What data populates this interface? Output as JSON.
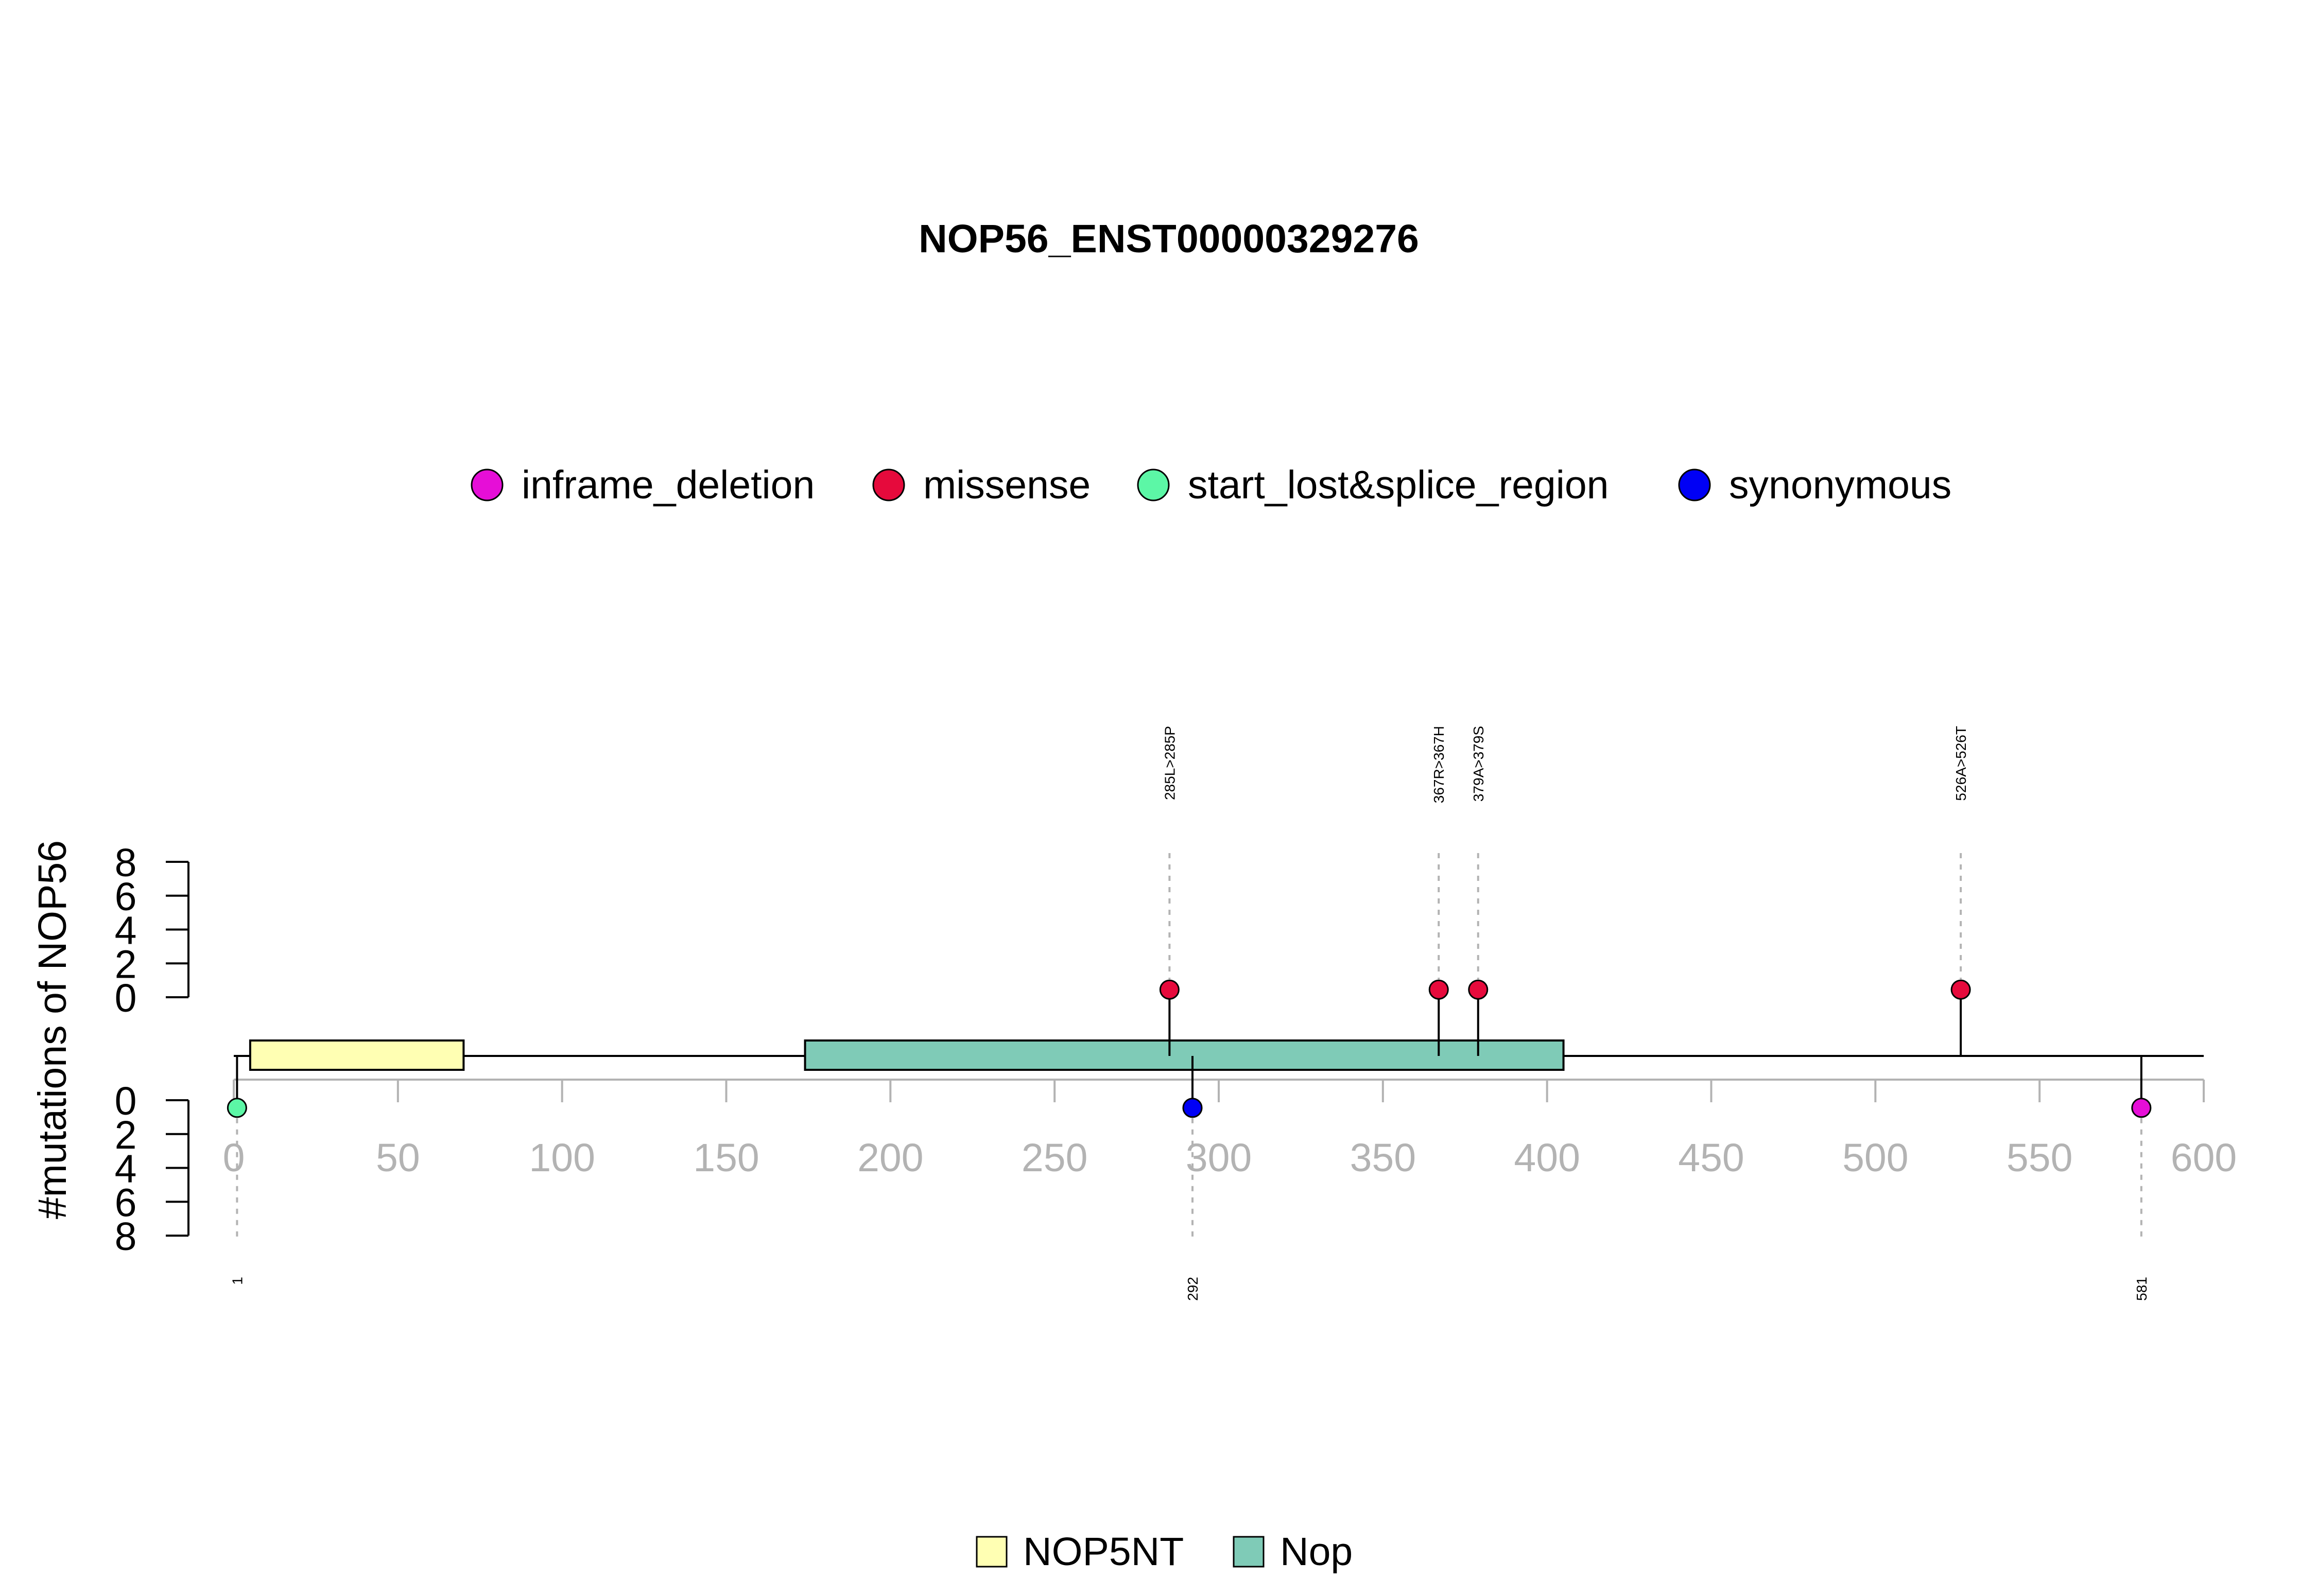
{
  "chart_data": {
    "type": "lollipop",
    "title": "NOP56_ENST00000329276",
    "ylabel": "#mutations of NOP56",
    "xlim": [
      0,
      600
    ],
    "x_ticks": [
      "0",
      "50",
      "100",
      "150",
      "200",
      "250",
      "300",
      "350",
      "400",
      "450",
      "500",
      "550",
      "600"
    ],
    "y_ticks_top": [
      "8",
      "6",
      "4",
      "2",
      "0"
    ],
    "y_ticks_bottom": [
      "0",
      "2",
      "4",
      "6",
      "8"
    ],
    "ylim": [
      0,
      8
    ],
    "mutation_types": [
      {
        "name": "inframe_deletion",
        "color": "#e60ed7"
      },
      {
        "name": "missense",
        "color": "#e60a3c"
      },
      {
        "name": "start_lost&splice_region",
        "color": "#5cf7a6"
      },
      {
        "name": "synonymous",
        "color": "#0000f5"
      }
    ],
    "domains": [
      {
        "name": "NOP5NT",
        "start": 5,
        "end": 70,
        "color": "#ffffb3"
      },
      {
        "name": "Nop",
        "start": 174,
        "end": 405,
        "color": "#7fcbb7"
      }
    ],
    "mutations": [
      {
        "pos": 1,
        "label": "1",
        "type": "start_lost&splice_region",
        "side": "bottom",
        "count": 1
      },
      {
        "pos": 285,
        "label": "285L>285P",
        "type": "missense",
        "side": "top",
        "count": 1
      },
      {
        "pos": 292,
        "label": "292",
        "type": "synonymous",
        "side": "bottom",
        "count": 1
      },
      {
        "pos": 367,
        "label": "367R>367H",
        "type": "missense",
        "side": "top",
        "count": 1
      },
      {
        "pos": 379,
        "label": "379A>379S",
        "type": "missense",
        "side": "top",
        "count": 1
      },
      {
        "pos": 526,
        "label": "526A>526T",
        "type": "missense",
        "side": "top",
        "count": 1
      },
      {
        "pos": 581,
        "label": "581",
        "type": "inframe_deletion",
        "side": "bottom",
        "count": 1
      }
    ]
  }
}
